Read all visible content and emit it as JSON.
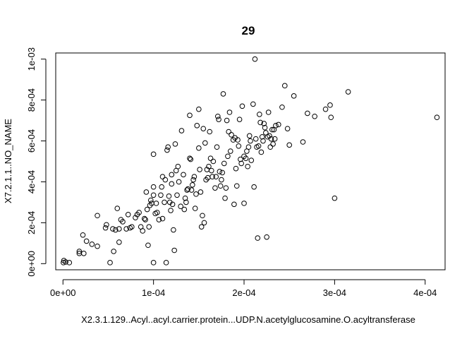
{
  "chart_data": {
    "type": "scatter",
    "title": "29",
    "xlabel": "X2.3.1.129..Acyl..acyl.carrier.protein...UDP.N.acetylglucosamine.O.acyltransferase",
    "ylabel": "X7.2.1.1..NO_NAME",
    "xlim": [
      -8e-06,
      0.000422
    ],
    "ylim": [
      -3e-05,
      0.00103
    ],
    "grid": false,
    "legend": "none",
    "x_ticks": [
      0,
      0.0001,
      0.0002,
      0.0003,
      0.0004
    ],
    "x_tick_labels": [
      "0e+00",
      "1e-04",
      "2e-04",
      "3e-04",
      "4e-04"
    ],
    "y_ticks": [
      0,
      0.0002,
      0.0004,
      0.0006,
      0.0008,
      0.001
    ],
    "y_tick_labels": [
      "0e+00",
      "2e-04",
      "4e-04",
      "6e-04",
      "8e-04",
      "1e-03"
    ],
    "points": [
      [
        5e-07,
        5e-06
      ],
      [
        1e-06,
        1.5e-05
      ],
      [
        3e-06,
        8e-06
      ],
      [
        7e-06,
        5e-06
      ],
      [
        1.8e-05,
        5e-05
      ],
      [
        1.8e-05,
        6e-05
      ],
      [
        2.2e-05,
        0.00014
      ],
      [
        2.3e-05,
        5e-05
      ],
      [
        2.6e-05,
        0.00011
      ],
      [
        3.2e-05,
        9.5e-05
      ],
      [
        3.8e-05,
        8.5e-05
      ],
      [
        3.8e-05,
        0.000235
      ],
      [
        4.7e-05,
        0.000175
      ],
      [
        4.8e-05,
        0.00019
      ],
      [
        5.2e-05,
        5e-06
      ],
      [
        5.5e-05,
        0.00017
      ],
      [
        5.6e-05,
        6e-05
      ],
      [
        5.8e-05,
        0.000165
      ],
      [
        6e-05,
        0.00027
      ],
      [
        6.2e-05,
        0.00017
      ],
      [
        6.2e-05,
        0.000105
      ],
      [
        6.4e-05,
        0.000215
      ],
      [
        6.6e-05,
        0.000205
      ],
      [
        7e-05,
        0.00017
      ],
      [
        7.2e-05,
        0.00024
      ],
      [
        7.4e-05,
        0.000175
      ],
      [
        7.6e-05,
        0.00018
      ],
      [
        8e-05,
        0.000225
      ],
      [
        8.2e-05,
        0.00024
      ],
      [
        8.4e-05,
        0.00025
      ],
      [
        8.6e-05,
        0.00018
      ],
      [
        8.8e-05,
        0.00016
      ],
      [
        9e-05,
        0.00022
      ],
      [
        9.1e-05,
        0.000215
      ],
      [
        9.2e-05,
        0.00035
      ],
      [
        9.3e-05,
        0.000265
      ],
      [
        9.4e-05,
        9e-05
      ],
      [
        9.5e-05,
        0.00018
      ],
      [
        9.6e-05,
        0.000285
      ],
      [
        9.7e-05,
        0.00031
      ],
      [
        9.8e-05,
        0.000295
      ],
      [
        0.0001,
        0.000535
      ],
      [
        0.0001,
        0.000375
      ],
      [
        0.0001,
        0.000335
      ],
      [
        0.0001,
        5e-06
      ],
      [
        0.000102,
        0.000245
      ],
      [
        0.000103,
        0.000295
      ],
      [
        0.000104,
        0.00025
      ],
      [
        0.000106,
        0.000215
      ],
      [
        0.000108,
        0.000335
      ],
      [
        0.000109,
        0.000375
      ],
      [
        0.00011,
        0.000425
      ],
      [
        0.00011,
        0.00022
      ],
      [
        0.000112,
        0.0003
      ],
      [
        0.000113,
        0.00041
      ],
      [
        0.000114,
        5e-06
      ],
      [
        0.000115,
        0.000555
      ],
      [
        0.000116,
        0.00057
      ],
      [
        0.000117,
        0.00033
      ],
      [
        0.000118,
        0.0003
      ],
      [
        0.000119,
        0.00026
      ],
      [
        0.00012,
        0.00039
      ],
      [
        0.00012,
        0.000435
      ],
      [
        0.000121,
        0.00029
      ],
      [
        0.000122,
        0.000165
      ],
      [
        0.000123,
        6.5e-05
      ],
      [
        0.000124,
        0.000585
      ],
      [
        0.000125,
        0.000455
      ],
      [
        0.000126,
        0.000335
      ],
      [
        0.000127,
        0.000475
      ],
      [
        0.000128,
        0.0004
      ],
      [
        0.00013,
        0.00028
      ],
      [
        0.000131,
        0.00065
      ],
      [
        0.000133,
        0.000435
      ],
      [
        0.000134,
        0.000265
      ],
      [
        0.000135,
        0.00032
      ],
      [
        0.000136,
        0.0003
      ],
      [
        0.000137,
        0.00036
      ],
      [
        0.000138,
        0.000365
      ],
      [
        0.00014,
        0.000725
      ],
      [
        0.00014,
        0.000515
      ],
      [
        0.000141,
        0.00051
      ],
      [
        0.000142,
        0.00036
      ],
      [
        0.000143,
        0.000385
      ],
      [
        0.000144,
        0.00041
      ],
      [
        0.000145,
        0.000425
      ],
      [
        0.000146,
        0.00027
      ],
      [
        0.000147,
        0.00034
      ],
      [
        0.000148,
        0.000675
      ],
      [
        0.00015,
        0.000755
      ],
      [
        0.00015,
        0.000565
      ],
      [
        0.000151,
        0.00046
      ],
      [
        0.000152,
        0.00035
      ],
      [
        0.000153,
        0.00018
      ],
      [
        0.000154,
        0.000235
      ],
      [
        0.000155,
        0.00066
      ],
      [
        0.000156,
        0.0002
      ],
      [
        0.000157,
        0.00059
      ],
      [
        0.000158,
        0.00041
      ],
      [
        0.000159,
        0.00046
      ],
      [
        0.00016,
        0.00042
      ],
      [
        0.000161,
        0.000475
      ],
      [
        0.000162,
        0.000645
      ],
      [
        0.000163,
        0.000515
      ],
      [
        0.000164,
        0.000455
      ],
      [
        0.000165,
        0.000425
      ],
      [
        0.000166,
        0.0005
      ],
      [
        0.000168,
        0.00037
      ],
      [
        0.000169,
        0.000425
      ],
      [
        0.00017,
        0.00057
      ],
      [
        0.000171,
        0.00072
      ],
      [
        0.000172,
        0.000705
      ],
      [
        0.000173,
        0.00045
      ],
      [
        0.000174,
        0.00038
      ],
      [
        0.000175,
        0.00041
      ],
      [
        0.000176,
        0.000445
      ],
      [
        0.000177,
        0.00083
      ],
      [
        0.000178,
        0.00049
      ],
      [
        0.000179,
        0.00032
      ],
      [
        0.00018,
        0.00037
      ],
      [
        0.000181,
        0.0007
      ],
      [
        0.000182,
        0.000525
      ],
      [
        0.000183,
        0.000645
      ],
      [
        0.000184,
        0.00074
      ],
      [
        0.000185,
        0.00055
      ],
      [
        0.000186,
        0.00063
      ],
      [
        0.000188,
        0.000605
      ],
      [
        0.000189,
        0.00029
      ],
      [
        0.00019,
        0.000615
      ],
      [
        0.000191,
        0.000465
      ],
      [
        0.000192,
        0.00038
      ],
      [
        0.000193,
        0.000605
      ],
      [
        0.000194,
        0.000575
      ],
      [
        0.000195,
        0.000705
      ],
      [
        0.000196,
        0.00051
      ],
      [
        0.000197,
        0.00049
      ],
      [
        0.000198,
        0.00077
      ],
      [
        0.0002,
        0.000295
      ],
      [
        0.0002,
        0.000525
      ],
      [
        0.000202,
        0.000515
      ],
      [
        0.000203,
        0.00055
      ],
      [
        0.000204,
        0.000475
      ],
      [
        0.000205,
        0.00057
      ],
      [
        0.000206,
        0.000625
      ],
      [
        0.000207,
        0.0006
      ],
      [
        0.000208,
        0.000505
      ],
      [
        0.00021,
        0.00078
      ],
      [
        0.000211,
        0.000375
      ],
      [
        0.000212,
        0.001
      ],
      [
        0.000213,
        0.00061
      ],
      [
        0.000214,
        0.00057
      ],
      [
        0.000215,
        0.000125
      ],
      [
        0.000216,
        0.000575
      ],
      [
        0.000217,
        0.00073
      ],
      [
        0.000218,
        0.00069
      ],
      [
        0.000219,
        0.000545
      ],
      [
        0.00022,
        0.00062
      ],
      [
        0.000221,
        0.0006
      ],
      [
        0.000222,
        0.000685
      ],
      [
        0.000223,
        0.000665
      ],
      [
        0.000224,
        0.00064
      ],
      [
        0.000225,
        0.00013
      ],
      [
        0.000226,
        0.00062
      ],
      [
        0.000227,
        0.00074
      ],
      [
        0.000228,
        0.000625
      ],
      [
        0.000229,
        0.00057
      ],
      [
        0.00023,
        0.00061
      ],
      [
        0.000231,
        0.000655
      ],
      [
        0.000232,
        0.000585
      ],
      [
        0.000233,
        0.000655
      ],
      [
        0.000234,
        0.00061
      ],
      [
        0.000235,
        0.000675
      ],
      [
        0.000238,
        0.00068
      ],
      [
        0.000242,
        0.000765
      ],
      [
        0.000245,
        0.00087
      ],
      [
        0.000248,
        0.00066
      ],
      [
        0.00025,
        0.00058
      ],
      [
        0.000255,
        0.00082
      ],
      [
        0.000265,
        0.000595
      ],
      [
        0.00027,
        0.000735
      ],
      [
        0.000278,
        0.00072
      ],
      [
        0.00029,
        0.000755
      ],
      [
        0.000295,
        0.000775
      ],
      [
        0.000296,
        0.000715
      ],
      [
        0.0003,
        0.00032
      ],
      [
        0.000315,
        0.00084
      ],
      [
        0.000413,
        0.000715
      ]
    ]
  }
}
